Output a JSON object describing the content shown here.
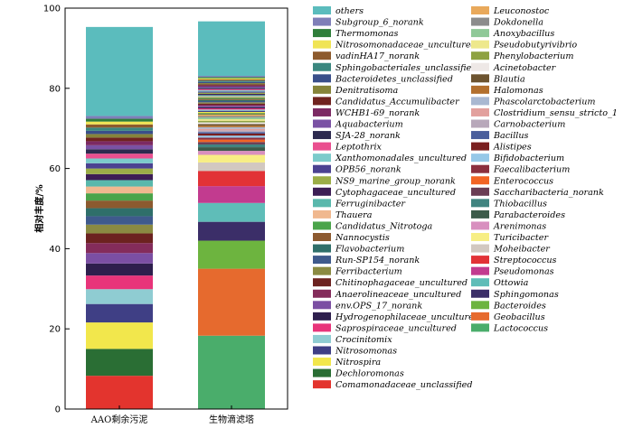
{
  "chart_data": {
    "type": "bar",
    "stacked": true,
    "ylabel": "相对丰度/%",
    "ylim": [
      0,
      100
    ],
    "yticks": [
      0,
      20,
      40,
      60,
      80,
      100
    ],
    "categories": [
      "AAO剩余污泥",
      "生物滴滤塔"
    ],
    "legend_position": "right",
    "series": [
      {
        "name": "Lactococcus",
        "color": "#4aad6b",
        "values": [
          0,
          18.3
        ]
      },
      {
        "name": "Geobacillus",
        "color": "#e66a2e",
        "values": [
          0,
          16.7
        ]
      },
      {
        "name": "Bacteroides",
        "color": "#6db43f",
        "values": [
          0,
          7.0
        ]
      },
      {
        "name": "Sphingomonas",
        "color": "#3b2e68",
        "values": [
          0,
          4.7
        ]
      },
      {
        "name": "Ottowia",
        "color": "#5fbdb8",
        "values": [
          0,
          4.7
        ]
      },
      {
        "name": "Pseudomonas",
        "color": "#c23b8f",
        "values": [
          0,
          4.2
        ]
      },
      {
        "name": "Streptococcus",
        "color": "#e23236",
        "values": [
          0,
          3.8
        ]
      },
      {
        "name": "Moheibacter",
        "color": "#d2c8c0",
        "values": [
          0,
          2.1
        ]
      },
      {
        "name": "Turicibacter",
        "color": "#f7ee84",
        "values": [
          0,
          1.9
        ]
      },
      {
        "name": "Arenimonas",
        "color": "#d88fbf",
        "values": [
          0,
          1.0
        ]
      },
      {
        "name": "Parabacteroides",
        "color": "#3c5b4a",
        "values": [
          0,
          0.9
        ]
      },
      {
        "name": "Thiobacillus",
        "color": "#408480",
        "values": [
          0,
          0.7
        ]
      },
      {
        "name": "Saccharibacteria_norank",
        "color": "#6b3d54",
        "values": [
          0,
          0.6
        ]
      },
      {
        "name": "Enterococcus",
        "color": "#f26424",
        "values": [
          0,
          0.6
        ]
      },
      {
        "name": "Faecalibacterium",
        "color": "#8b2f3e",
        "values": [
          0,
          0.5
        ]
      },
      {
        "name": "Bifidobacterium",
        "color": "#96c8e8",
        "values": [
          0,
          0.5
        ]
      },
      {
        "name": "Alistipes",
        "color": "#7a1f1f",
        "values": [
          0,
          0.5
        ]
      },
      {
        "name": "Bacillus",
        "color": "#4b5f9c",
        "values": [
          0,
          0.4
        ]
      },
      {
        "name": "Carnobacterium",
        "color": "#b8a8ba",
        "values": [
          0,
          0.4
        ]
      },
      {
        "name": "Clostridium_sensu_stricto_1",
        "color": "#e2a09d",
        "values": [
          0,
          0.4
        ]
      },
      {
        "name": "Phascolarctobacterium",
        "color": "#a9b8d1",
        "values": [
          0,
          0.4
        ]
      },
      {
        "name": "Halomonas",
        "color": "#b3702e",
        "values": [
          0,
          0.4
        ]
      },
      {
        "name": "Blautia",
        "color": "#6d5430",
        "values": [
          0,
          0.4
        ]
      },
      {
        "name": "Acinetobacter",
        "color": "#eee8e6",
        "values": [
          0,
          0.4
        ]
      },
      {
        "name": "Phenylobacterium",
        "color": "#8ea242",
        "values": [
          0,
          0.4
        ]
      },
      {
        "name": "Pseudobutyrivibrio",
        "color": "#eee88c",
        "values": [
          0,
          0.4
        ]
      },
      {
        "name": "Anoxybacillus",
        "color": "#8fc997",
        "values": [
          0,
          0.4
        ]
      },
      {
        "name": "Dokdonella",
        "color": "#8c8c8c",
        "values": [
          0,
          0.4
        ]
      },
      {
        "name": "Leuconostoc",
        "color": "#e9a95b",
        "values": [
          0,
          0.4
        ]
      },
      {
        "name": "Comamonadaceae_unclassified",
        "color": "#e3342e",
        "values": [
          8.3,
          0
        ]
      },
      {
        "name": "Dechloromonas",
        "color": "#2a6e34",
        "values": [
          6.7,
          0.3
        ]
      },
      {
        "name": "Nitrospira",
        "color": "#f2e74c",
        "values": [
          6.6,
          0.3
        ]
      },
      {
        "name": "Nitrosomonas",
        "color": "#3f3f85",
        "values": [
          4.6,
          0.3
        ]
      },
      {
        "name": "Crocinitomix",
        "color": "#8fccd2",
        "values": [
          3.7,
          0.3
        ]
      },
      {
        "name": "Saprospiraceae_uncultured",
        "color": "#e8347a",
        "values": [
          3.4,
          0.3
        ]
      },
      {
        "name": "Hydrogenophilaceae_uncultured",
        "color": "#2e1f4d",
        "values": [
          3.0,
          0.3
        ]
      },
      {
        "name": "env.OPS_17_norank",
        "color": "#7b4fa3",
        "values": [
          2.6,
          0.3
        ]
      },
      {
        "name": "Anaerolineaceae_uncultured",
        "color": "#842c5b",
        "values": [
          2.5,
          0.3
        ]
      },
      {
        "name": "Chitinophagaceae_uncultured",
        "color": "#6c2220",
        "values": [
          2.4,
          0.3
        ]
      },
      {
        "name": "Ferribacterium",
        "color": "#8a8a42",
        "values": [
          2.2,
          0.3
        ]
      },
      {
        "name": "Run-SP154_norank",
        "color": "#3f5a8c",
        "values": [
          2.1,
          0.3
        ]
      },
      {
        "name": "Flavobacterium",
        "color": "#2f6f6a",
        "values": [
          2.0,
          0.3
        ]
      },
      {
        "name": "Nannocystis",
        "color": "#8c5a2f",
        "values": [
          1.9,
          0.3
        ]
      },
      {
        "name": "Candidatus_Nitrotoga",
        "color": "#4aa44a",
        "values": [
          1.8,
          0.3
        ]
      },
      {
        "name": "Thauera",
        "color": "#f0b88f",
        "values": [
          1.7,
          0.3
        ]
      },
      {
        "name": "Ferruginibacter",
        "color": "#59b8ac",
        "values": [
          1.6,
          0.3
        ]
      },
      {
        "name": "Cytophagaceae_uncultured",
        "color": "#3d1e55",
        "values": [
          1.5,
          0.3
        ]
      },
      {
        "name": "NS9_marine_group_norank",
        "color": "#9bad47",
        "values": [
          1.4,
          0.3
        ]
      },
      {
        "name": "OPB56_norank",
        "color": "#4b4291",
        "values": [
          1.3,
          0.3
        ]
      },
      {
        "name": "Xanthomonadales_uncultured",
        "color": "#7ccbcb",
        "values": [
          1.2,
          0.3
        ]
      },
      {
        "name": "Leptothrix",
        "color": "#ea4f8f",
        "values": [
          1.2,
          0.3
        ]
      },
      {
        "name": "SJA-28_norank",
        "color": "#2d2a4f",
        "values": [
          1.1,
          0.3
        ]
      },
      {
        "name": "Aquabacterium",
        "color": "#7a52a4",
        "values": [
          1.0,
          0.3
        ]
      },
      {
        "name": "WCHB1-69_norank",
        "color": "#7c2a63",
        "values": [
          1.0,
          0.3
        ]
      },
      {
        "name": "Candidatus_Accumulibacter",
        "color": "#702320",
        "values": [
          0.9,
          0.3
        ]
      },
      {
        "name": "Denitratisoma",
        "color": "#86843a",
        "values": [
          0.9,
          0.3
        ]
      },
      {
        "name": "Bacteroidetes_unclassified",
        "color": "#3a4f8a",
        "values": [
          0.8,
          0.3
        ]
      },
      {
        "name": "Sphingobacteriales_unclassified",
        "color": "#3a877f",
        "values": [
          0.8,
          0.3
        ]
      },
      {
        "name": "vadinHA17_norank",
        "color": "#8d5a2d",
        "values": [
          0.8,
          0.3
        ]
      },
      {
        "name": "Nitrosomonadaceae_uncultured",
        "color": "#f0e455",
        "values": [
          0.7,
          0.3
        ]
      },
      {
        "name": "Thermomonas",
        "color": "#2f7e3a",
        "values": [
          0.7,
          0.3
        ]
      },
      {
        "name": "Subgroup_6_norank",
        "color": "#7f7fb8",
        "values": [
          0.7,
          0.3
        ]
      },
      {
        "name": "others",
        "color": "#5bbcbd",
        "values": [
          22.2,
          13.6
        ]
      }
    ],
    "legend_order": [
      "others",
      "Subgroup_6_norank",
      "Thermomonas",
      "Nitrosomonadaceae_uncultured",
      "vadinHA17_norank",
      "Sphingobacteriales_unclassified",
      "Bacteroidetes_unclassified",
      "Denitratisoma",
      "Candidatus_Accumulibacter",
      "WCHB1-69_norank",
      "Aquabacterium",
      "SJA-28_norank",
      "Leptothrix",
      "Xanthomonadales_uncultured",
      "OPB56_norank",
      "NS9_marine_group_norank",
      "Cytophagaceae_uncultured",
      "Ferruginibacter",
      "Thauera",
      "Candidatus_Nitrotoga",
      "Nannocystis",
      "Flavobacterium",
      "Run-SP154_norank",
      "Ferribacterium",
      "Chitinophagaceae_uncultured",
      "Anaerolineaceae_uncultured",
      "env.OPS_17_norank",
      "Hydrogenophilaceae_uncultured",
      "Saprospiraceae_uncultured",
      "Crocinitomix",
      "Nitrosomonas",
      "Nitrospira",
      "Dechloromonas",
      "Comamonadaceae_unclassified",
      "Leuconostoc",
      "Dokdonella",
      "Anoxybacillus",
      "Pseudobutyrivibrio",
      "Phenylobacterium",
      "Acinetobacter",
      "Blautia",
      "Halomonas",
      "Phascolarctobacterium",
      "Clostridium_sensu_stricto_1",
      "Carnobacterium",
      "Bacillus",
      "Alistipes",
      "Bifidobacterium",
      "Faecalibacterium",
      "Enterococcus",
      "Saccharibacteria_norank",
      "Thiobacillus",
      "Parabacteroides",
      "Arenimonas",
      "Turicibacter",
      "Moheibacter",
      "Streptococcus",
      "Pseudomonas",
      "Ottowia",
      "Sphingomonas",
      "Bacteroides",
      "Geobacillus",
      "Lactococcus"
    ]
  }
}
